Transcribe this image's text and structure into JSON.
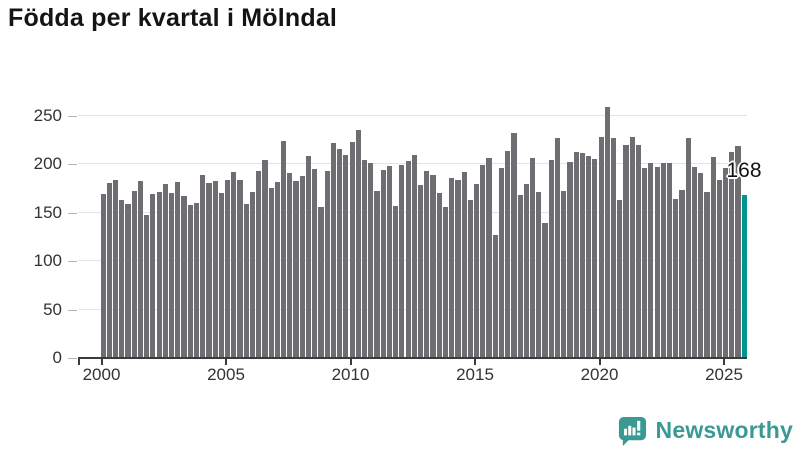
{
  "title": "Födda per kvartal i Mölndal",
  "highlight_label": "168",
  "logo": {
    "text": "Newsworthy"
  },
  "colors": {
    "bar": "#6e6d72",
    "highlight": "#009590",
    "grid": "#e4e4e4",
    "axis": "#3b3b3b",
    "y_tick_dash": "#b4b4b4",
    "tick_label": "#333333",
    "title_color": "#141414",
    "label_halo": "#ffffff",
    "logo_teal": "#3a9a93",
    "background": "#ffffff"
  },
  "y_axis": {
    "ticks": [
      0,
      50,
      100,
      150,
      200,
      250
    ]
  },
  "x_axis": {
    "ticks": [
      "2000",
      "2005",
      "2010",
      "2015",
      "2020",
      "2025"
    ]
  },
  "chart_data": {
    "type": "bar",
    "title": "Födda per kvartal i Mölndal",
    "xlabel": "",
    "ylabel": "",
    "x_unit": "quarter",
    "start": {
      "year": 2000,
      "quarter": 1
    },
    "end": {
      "year": 2025,
      "quarter": 4
    },
    "ylim": [
      0,
      250
    ],
    "grid": true,
    "legend": "none",
    "x_tick_labels": [
      "2000",
      "2005",
      "2010",
      "2015",
      "2020",
      "2025"
    ],
    "highlight_index": 103,
    "highlight_value": 168,
    "values": [
      169,
      181,
      184,
      163,
      159,
      173,
      183,
      148,
      169,
      172,
      180,
      171,
      182,
      167,
      158,
      160,
      189,
      181,
      183,
      171,
      184,
      192,
      184,
      159,
      172,
      193,
      205,
      176,
      182,
      224,
      191,
      183,
      188,
      209,
      195,
      156,
      193,
      222,
      216,
      210,
      223,
      236,
      205,
      201,
      173,
      194,
      198,
      157,
      199,
      204,
      210,
      179,
      193,
      189,
      171,
      156,
      186,
      184,
      192,
      163,
      180,
      199,
      207,
      127,
      196,
      214,
      232,
      168,
      180,
      207,
      172,
      139,
      205,
      227,
      173,
      203,
      213,
      212,
      209,
      206,
      228,
      259,
      227,
      163,
      220,
      228,
      220,
      196,
      202,
      197,
      201,
      201,
      164,
      174,
      227,
      197,
      191,
      172,
      208,
      184,
      196,
      213,
      219,
      168
    ]
  }
}
